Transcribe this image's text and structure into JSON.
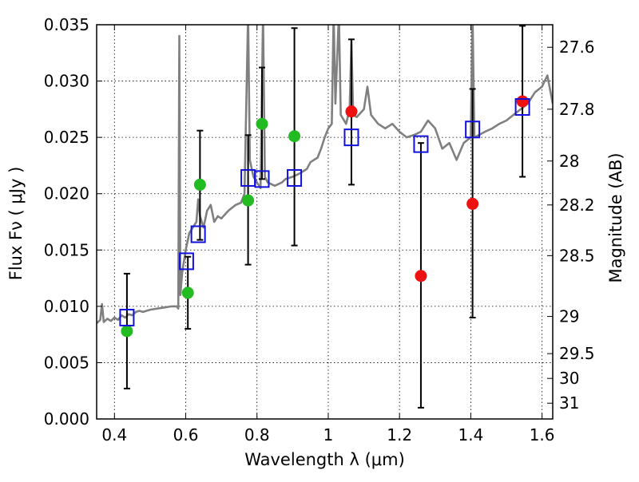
{
  "chart_data": {
    "type": "scatter",
    "xlabel": "Wavelength  λ (μm)",
    "ylabel": "Flux  Fν  ( μJy )",
    "ylabel_right": "Magnitude (AB)",
    "xlim": [
      0.35,
      1.63
    ],
    "ylim": [
      0.0,
      0.035
    ],
    "grid": true,
    "x_ticks": [
      0.4,
      0.6,
      0.8,
      1.0,
      1.2,
      1.4,
      1.6
    ],
    "x_tick_labels": [
      "0.4",
      "0.6",
      "0.8",
      "1",
      "1.2",
      "1.4",
      "1.6"
    ],
    "y_ticks": [
      0.0,
      0.005,
      0.01,
      0.015,
      0.02,
      0.025,
      0.03,
      0.035
    ],
    "y_tick_labels": [
      "0.000",
      "0.005",
      "0.010",
      "0.015",
      "0.020",
      "0.025",
      "0.030",
      "0.035"
    ],
    "right_ticks": [
      {
        "label": "27.6",
        "flux": 0.033
      },
      {
        "label": "27.8",
        "flux": 0.0275
      },
      {
        "label": "28",
        "flux": 0.0229
      },
      {
        "label": "28.2",
        "flux": 0.019
      },
      {
        "label": "28.5",
        "flux": 0.0145
      },
      {
        "label": "29",
        "flux": 0.0091
      },
      {
        "label": "29.5",
        "flux": 0.0058
      },
      {
        "label": "30",
        "flux": 0.0036
      },
      {
        "label": "31",
        "flux": 0.0014
      }
    ],
    "series": [
      {
        "type": "line",
        "color": "#808080",
        "points": [
          [
            0.35,
            0.0085
          ],
          [
            0.36,
            0.0088
          ],
          [
            0.365,
            0.0102
          ],
          [
            0.37,
            0.0086
          ],
          [
            0.38,
            0.0089
          ],
          [
            0.39,
            0.0087
          ],
          [
            0.4,
            0.009
          ],
          [
            0.41,
            0.0088
          ],
          [
            0.42,
            0.0092
          ],
          [
            0.43,
            0.009
          ],
          [
            0.44,
            0.0093
          ],
          [
            0.45,
            0.0092
          ],
          [
            0.46,
            0.0095
          ],
          [
            0.47,
            0.0096
          ],
          [
            0.48,
            0.0095
          ],
          [
            0.5,
            0.0097
          ],
          [
            0.52,
            0.0098
          ],
          [
            0.54,
            0.0099
          ],
          [
            0.56,
            0.01
          ],
          [
            0.575,
            0.01
          ],
          [
            0.579,
            0.0098
          ],
          [
            0.582,
            0.034
          ],
          [
            0.585,
            0.011
          ],
          [
            0.59,
            0.013
          ],
          [
            0.6,
            0.015
          ],
          [
            0.61,
            0.0165
          ],
          [
            0.62,
            0.017
          ],
          [
            0.63,
            0.0175
          ],
          [
            0.635,
            0.0195
          ],
          [
            0.64,
            0.018
          ],
          [
            0.65,
            0.017
          ],
          [
            0.66,
            0.0185
          ],
          [
            0.67,
            0.019
          ],
          [
            0.68,
            0.0175
          ],
          [
            0.69,
            0.018
          ],
          [
            0.7,
            0.0178
          ],
          [
            0.72,
            0.0185
          ],
          [
            0.74,
            0.019
          ],
          [
            0.755,
            0.0192
          ],
          [
            0.765,
            0.02
          ],
          [
            0.775,
            0.036
          ],
          [
            0.78,
            0.023
          ],
          [
            0.79,
            0.0215
          ],
          [
            0.8,
            0.021
          ],
          [
            0.81,
            0.0205
          ],
          [
            0.817,
            0.036
          ],
          [
            0.822,
            0.0215
          ],
          [
            0.83,
            0.021
          ],
          [
            0.85,
            0.0207
          ],
          [
            0.87,
            0.021
          ],
          [
            0.88,
            0.0213
          ],
          [
            0.9,
            0.0215
          ],
          [
            0.92,
            0.0218
          ],
          [
            0.94,
            0.0222
          ],
          [
            0.95,
            0.0228
          ],
          [
            0.97,
            0.0232
          ],
          [
            0.98,
            0.024
          ],
          [
            0.99,
            0.025
          ],
          [
            1.0,
            0.0258
          ],
          [
            1.01,
            0.0262
          ],
          [
            1.015,
            0.036
          ],
          [
            1.02,
            0.028
          ],
          [
            1.03,
            0.036
          ],
          [
            1.035,
            0.027
          ],
          [
            1.05,
            0.0262
          ],
          [
            1.06,
            0.0275
          ],
          [
            1.065,
            0.0335
          ],
          [
            1.07,
            0.027
          ],
          [
            1.08,
            0.0268
          ],
          [
            1.1,
            0.0275
          ],
          [
            1.11,
            0.0295
          ],
          [
            1.12,
            0.027
          ],
          [
            1.14,
            0.0262
          ],
          [
            1.16,
            0.0258
          ],
          [
            1.18,
            0.0262
          ],
          [
            1.2,
            0.0255
          ],
          [
            1.22,
            0.025
          ],
          [
            1.24,
            0.0252
          ],
          [
            1.26,
            0.0255
          ],
          [
            1.28,
            0.0265
          ],
          [
            1.3,
            0.0258
          ],
          [
            1.32,
            0.024
          ],
          [
            1.34,
            0.0245
          ],
          [
            1.36,
            0.023
          ],
          [
            1.38,
            0.0245
          ],
          [
            1.4,
            0.025
          ],
          [
            1.405,
            0.036
          ],
          [
            1.41,
            0.025
          ],
          [
            1.44,
            0.0255
          ],
          [
            1.46,
            0.0258
          ],
          [
            1.48,
            0.0262
          ],
          [
            1.5,
            0.0265
          ],
          [
            1.52,
            0.027
          ],
          [
            1.54,
            0.0275
          ],
          [
            1.56,
            0.028
          ],
          [
            1.58,
            0.029
          ],
          [
            1.6,
            0.0295
          ],
          [
            1.615,
            0.0305
          ],
          [
            1.63,
            0.028
          ]
        ]
      },
      {
        "type": "scatter",
        "marker": "circle",
        "color": "#22bb22",
        "points": [
          [
            0.435,
            0.0078
          ],
          [
            0.606,
            0.0112
          ],
          [
            0.64,
            0.0208
          ],
          [
            0.775,
            0.0194
          ],
          [
            0.814,
            0.0262
          ],
          [
            0.905,
            0.0251
          ]
        ]
      },
      {
        "type": "scatter",
        "marker": "circle",
        "color": "#ee1111",
        "points": [
          [
            1.065,
            0.0273
          ],
          [
            1.26,
            0.0127
          ],
          [
            1.405,
            0.0191
          ],
          [
            1.545,
            0.0282
          ]
        ]
      },
      {
        "type": "scatter",
        "marker": "square",
        "color": "#1111dd",
        "points": [
          [
            0.435,
            0.009
          ],
          [
            0.602,
            0.014
          ],
          [
            0.635,
            0.0164
          ],
          [
            0.775,
            0.0214
          ],
          [
            0.814,
            0.0213
          ],
          [
            0.905,
            0.0214
          ],
          [
            1.065,
            0.025
          ],
          [
            1.26,
            0.0244
          ],
          [
            1.405,
            0.0257
          ],
          [
            1.545,
            0.0277
          ]
        ]
      },
      {
        "type": "errorbar",
        "color": "#000000",
        "bars": [
          {
            "x": 0.435,
            "low": 0.0027,
            "high": 0.0129
          },
          {
            "x": 0.606,
            "low": 0.008,
            "high": 0.0144
          },
          {
            "x": 0.64,
            "low": 0.0159,
            "high": 0.0256
          },
          {
            "x": 0.775,
            "low": 0.0137,
            "high": 0.0252
          },
          {
            "x": 0.814,
            "low": 0.0213,
            "high": 0.0312
          },
          {
            "x": 0.905,
            "low": 0.0154,
            "high": 0.0347
          },
          {
            "x": 1.065,
            "low": 0.0208,
            "high": 0.0337
          },
          {
            "x": 1.26,
            "low": 0.001,
            "high": 0.0245
          },
          {
            "x": 1.405,
            "low": 0.009,
            "high": 0.0293
          },
          {
            "x": 1.545,
            "low": 0.0215,
            "high": 0.0349
          }
        ]
      }
    ]
  }
}
